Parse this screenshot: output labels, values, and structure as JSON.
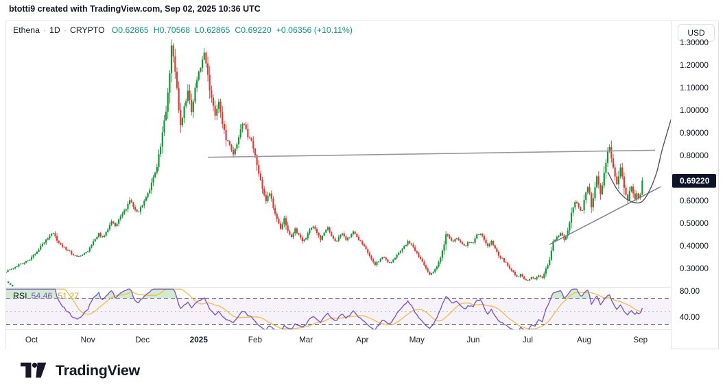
{
  "attribution": "btotti9 created with TradingView.com, Sep 02, 2025 10:36 UTC",
  "legend": {
    "title": "Ethena",
    "interval": "1D",
    "market": "CRYPTO",
    "sep": "·",
    "values": [
      "O0.62865",
      "H0.70568",
      "L0.62865",
      "C0.69220"
    ],
    "change": "+0.06356 (+10.11%)"
  },
  "rsi_legend": {
    "label": "RSI",
    "value": "54.46",
    "ma_value": "51.27"
  },
  "price_axis": {
    "currency": "USD",
    "last_price": "0.69220",
    "ticks": [
      {
        "label": "1.30000",
        "value": 1.3
      },
      {
        "label": "1.20000",
        "value": 1.2
      },
      {
        "label": "1.10000",
        "value": 1.1
      },
      {
        "label": "1.00000",
        "value": 1.0
      },
      {
        "label": "0.90000",
        "value": 0.9
      },
      {
        "label": "0.80000",
        "value": 0.8
      },
      {
        "label": "0.60000",
        "value": 0.6
      },
      {
        "label": "0.50000",
        "value": 0.5
      },
      {
        "label": "0.40000",
        "value": 0.4
      },
      {
        "label": "0.30000",
        "value": 0.3
      }
    ],
    "rsi_ticks": [
      {
        "label": "80.00",
        "value": 80
      },
      {
        "label": "40.00",
        "value": 40
      }
    ]
  },
  "time_axis": {
    "months": [
      {
        "label": "Oct",
        "day": 14
      },
      {
        "label": "Nov",
        "day": 45
      },
      {
        "label": "Dec",
        "day": 75
      },
      {
        "label": "2025",
        "day": 106,
        "bold": true
      },
      {
        "label": "Feb",
        "day": 137
      },
      {
        "label": "Mar",
        "day": 165
      },
      {
        "label": "Apr",
        "day": 196
      },
      {
        "label": "May",
        "day": 226
      },
      {
        "label": "Jun",
        "day": 257
      },
      {
        "label": "Jul",
        "day": 287
      },
      {
        "label": "Aug",
        "day": 318
      },
      {
        "label": "Sep",
        "day": 349
      }
    ]
  },
  "logo": {
    "text": "TradingView"
  },
  "colors": {
    "up": "#0c9b33",
    "down": "#e8352f",
    "ohlc_text": "#089981",
    "rsi_line": "#7e57c2",
    "rsi_ma_line": "#eec04e",
    "rsi_band_fill": "rgba(126,87,194,0.08)",
    "overbought_fill": "rgba(102,187,106,0.3)",
    "resistance_line": "#9598a3",
    "support_line": "#787b86",
    "curve_line": "#4f5360",
    "badge_bg": "#0c1427"
  },
  "chart_data": {
    "type": "candlestick+rsi",
    "title": "Ethena · 1D · CRYPTO",
    "last_candle": {
      "open": 0.62865,
      "high": 0.70568,
      "low": 0.62865,
      "close": 0.6922,
      "change": 0.06356,
      "change_pct": 10.11
    },
    "y_axis": {
      "visible_range": [
        0.22,
        1.4
      ],
      "tick_step": 0.1,
      "grid": false
    },
    "rsi_pane": {
      "period": 14,
      "levels": [
        70,
        50,
        30
      ],
      "axis_labels": [
        80,
        40
      ],
      "last_rsi": 54.46,
      "last_ma": 51.27
    },
    "close_anchors": [
      [
        0,
        0.29
      ],
      [
        3,
        0.3
      ],
      [
        6,
        0.315
      ],
      [
        10,
        0.33
      ],
      [
        13,
        0.345
      ],
      [
        14,
        0.35
      ],
      [
        17,
        0.38
      ],
      [
        20,
        0.41
      ],
      [
        24,
        0.45
      ],
      [
        26,
        0.46
      ],
      [
        28,
        0.43
      ],
      [
        31,
        0.4
      ],
      [
        34,
        0.38
      ],
      [
        37,
        0.365
      ],
      [
        40,
        0.355
      ],
      [
        43,
        0.37
      ],
      [
        45,
        0.38
      ],
      [
        48,
        0.42
      ],
      [
        51,
        0.46
      ],
      [
        53,
        0.44
      ],
      [
        56,
        0.48
      ],
      [
        58,
        0.51
      ],
      [
        60,
        0.49
      ],
      [
        63,
        0.53
      ],
      [
        66,
        0.57
      ],
      [
        68,
        0.61
      ],
      [
        70,
        0.58
      ],
      [
        72,
        0.55
      ],
      [
        74,
        0.57
      ],
      [
        76,
        0.6
      ],
      [
        78,
        0.63
      ],
      [
        80,
        0.68
      ],
      [
        82,
        0.72
      ],
      [
        84,
        0.8
      ],
      [
        86,
        0.9
      ],
      [
        88,
        1.0
      ],
      [
        89,
        1.07
      ],
      [
        90,
        1.16
      ],
      [
        91,
        1.29
      ],
      [
        93,
        1.18
      ],
      [
        95,
        1.0
      ],
      [
        96,
        0.93
      ],
      [
        98,
        1.02
      ],
      [
        100,
        1.08
      ],
      [
        102,
        1.0
      ],
      [
        104,
        1.1
      ],
      [
        106,
        1.17
      ],
      [
        108,
        1.22
      ],
      [
        109,
        1.26
      ],
      [
        111,
        1.15
      ],
      [
        113,
        1.05
      ],
      [
        115,
        0.98
      ],
      [
        117,
        1.04
      ],
      [
        119,
        0.94
      ],
      [
        121,
        0.88
      ],
      [
        123,
        0.84
      ],
      [
        125,
        0.81
      ],
      [
        127,
        0.86
      ],
      [
        129,
        0.92
      ],
      [
        131,
        0.95
      ],
      [
        133,
        0.89
      ],
      [
        135,
        0.86
      ],
      [
        137,
        0.8
      ],
      [
        139,
        0.73
      ],
      [
        141,
        0.66
      ],
      [
        143,
        0.6
      ],
      [
        145,
        0.64
      ],
      [
        147,
        0.57
      ],
      [
        149,
        0.52
      ],
      [
        151,
        0.48
      ],
      [
        153,
        0.52
      ],
      [
        155,
        0.47
      ],
      [
        157,
        0.44
      ],
      [
        159,
        0.475
      ],
      [
        161,
        0.45
      ],
      [
        163,
        0.425
      ],
      [
        165,
        0.44
      ],
      [
        167,
        0.47
      ],
      [
        169,
        0.49
      ],
      [
        171,
        0.46
      ],
      [
        173,
        0.43
      ],
      [
        175,
        0.46
      ],
      [
        177,
        0.48
      ],
      [
        179,
        0.45
      ],
      [
        181,
        0.42
      ],
      [
        183,
        0.44
      ],
      [
        185,
        0.46
      ],
      [
        187,
        0.43
      ],
      [
        189,
        0.445
      ],
      [
        191,
        0.465
      ],
      [
        193,
        0.445
      ],
      [
        195,
        0.42
      ],
      [
        197,
        0.4
      ],
      [
        199,
        0.37
      ],
      [
        201,
        0.345
      ],
      [
        203,
        0.32
      ],
      [
        205,
        0.335
      ],
      [
        207,
        0.355
      ],
      [
        209,
        0.34
      ],
      [
        211,
        0.325
      ],
      [
        213,
        0.345
      ],
      [
        215,
        0.36
      ],
      [
        217,
        0.38
      ],
      [
        219,
        0.4
      ],
      [
        221,
        0.42
      ],
      [
        223,
        0.405
      ],
      [
        225,
        0.38
      ],
      [
        227,
        0.355
      ],
      [
        229,
        0.33
      ],
      [
        231,
        0.3
      ],
      [
        233,
        0.275
      ],
      [
        235,
        0.29
      ],
      [
        237,
        0.31
      ],
      [
        239,
        0.35
      ],
      [
        241,
        0.41
      ],
      [
        242,
        0.455
      ],
      [
        244,
        0.44
      ],
      [
        246,
        0.42
      ],
      [
        248,
        0.44
      ],
      [
        250,
        0.42
      ],
      [
        252,
        0.4
      ],
      [
        254,
        0.415
      ],
      [
        257,
        0.42
      ],
      [
        259,
        0.45
      ],
      [
        261,
        0.46
      ],
      [
        263,
        0.43
      ],
      [
        265,
        0.4
      ],
      [
        267,
        0.42
      ],
      [
        269,
        0.39
      ],
      [
        271,
        0.36
      ],
      [
        273,
        0.345
      ],
      [
        275,
        0.325
      ],
      [
        277,
        0.305
      ],
      [
        279,
        0.285
      ],
      [
        281,
        0.265
      ],
      [
        283,
        0.275
      ],
      [
        285,
        0.255
      ],
      [
        287,
        0.25
      ],
      [
        289,
        0.265
      ],
      [
        291,
        0.255
      ],
      [
        293,
        0.27
      ],
      [
        295,
        0.26
      ],
      [
        297,
        0.3
      ],
      [
        299,
        0.34
      ],
      [
        301,
        0.42
      ],
      [
        303,
        0.44
      ],
      [
        305,
        0.46
      ],
      [
        307,
        0.43
      ],
      [
        309,
        0.47
      ],
      [
        311,
        0.55
      ],
      [
        313,
        0.6
      ],
      [
        315,
        0.57
      ],
      [
        317,
        0.555
      ],
      [
        318,
        0.6
      ],
      [
        319,
        0.64
      ],
      [
        320,
        0.67
      ],
      [
        321,
        0.63
      ],
      [
        322,
        0.58
      ],
      [
        323,
        0.62
      ],
      [
        324,
        0.66
      ],
      [
        325,
        0.71
      ],
      [
        326,
        0.67
      ],
      [
        327,
        0.63
      ],
      [
        328,
        0.67
      ],
      [
        329,
        0.72
      ],
      [
        330,
        0.77
      ],
      [
        331,
        0.82
      ],
      [
        332,
        0.84
      ],
      [
        333,
        0.79
      ],
      [
        334,
        0.75
      ],
      [
        335,
        0.71
      ],
      [
        336,
        0.675
      ],
      [
        337,
        0.71
      ],
      [
        338,
        0.75
      ],
      [
        339,
        0.71
      ],
      [
        340,
        0.66
      ],
      [
        341,
        0.63
      ],
      [
        342,
        0.605
      ],
      [
        343,
        0.645
      ],
      [
        344,
        0.665
      ],
      [
        345,
        0.635
      ],
      [
        346,
        0.61
      ],
      [
        347,
        0.635
      ],
      [
        348,
        0.615
      ],
      [
        349,
        0.62865
      ],
      [
        350,
        0.6922
      ]
    ],
    "trendlines": [
      {
        "name": "horizontal-resistance",
        "from": {
          "day": 111,
          "price": 0.795
        },
        "to": {
          "day": 357,
          "price": 0.826
        }
      },
      {
        "name": "ascending-support",
        "from": {
          "day": 299,
          "price": 0.409
        },
        "to": {
          "day": 360,
          "price": 0.664
        }
      }
    ],
    "curve": {
      "name": "parabolic-projection",
      "points": [
        [
          331,
          0.73
        ],
        [
          336,
          0.655
        ],
        [
          341,
          0.612
        ],
        [
          346,
          0.594
        ],
        [
          350,
          0.6
        ],
        [
          354,
          0.648
        ],
        [
          358,
          0.73
        ],
        [
          361,
          0.83
        ],
        [
          366,
          0.967
        ]
      ]
    }
  }
}
